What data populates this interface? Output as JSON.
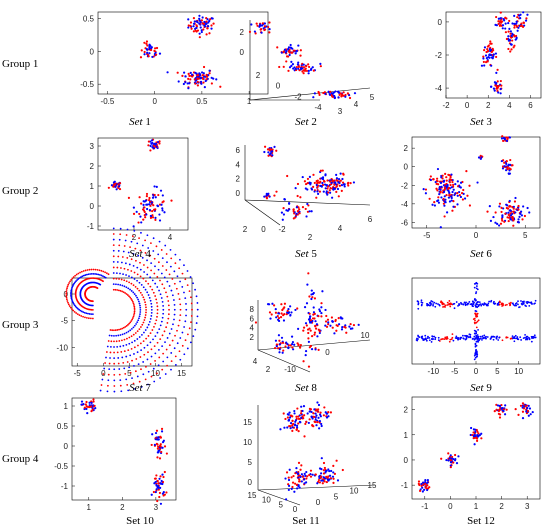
{
  "groups": [
    "Group 1",
    "Group 2",
    "Group 3",
    "Group 4"
  ],
  "colors": {
    "class_a": "#ff0000",
    "class_b": "#0000ff",
    "axis": "#000000"
  },
  "chart_data": [
    {
      "id": "set1",
      "type": "scatter",
      "caption_prefix": "Set",
      "caption_num": "1",
      "italic": true,
      "x_ticks": [
        "-0.5",
        "0",
        "0.5",
        "1"
      ],
      "y_ticks": [
        "0.5",
        "0",
        "-0.5"
      ],
      "xlim": [
        -0.6,
        1.2
      ],
      "ylim": [
        -0.65,
        0.6
      ],
      "clusters": [
        {
          "cx": 0.5,
          "cy": 0.4,
          "sx": 0.07,
          "sy": 0.07,
          "n": 70
        },
        {
          "cx": -0.05,
          "cy": 0.0,
          "sx": 0.05,
          "sy": 0.06,
          "n": 40
        },
        {
          "cx": 0.45,
          "cy": -0.4,
          "sx": 0.09,
          "sy": 0.07,
          "n": 90
        }
      ]
    },
    {
      "id": "set2",
      "type": "scatter3d",
      "caption_prefix": "Set",
      "caption_num": "2",
      "italic": true,
      "x_ticks": [
        "-4",
        "-2",
        "0",
        "2"
      ],
      "y_ticks": [
        "2",
        "0"
      ],
      "z_ticks": [
        "3",
        "4",
        "5"
      ]
    },
    {
      "id": "set3",
      "type": "scatter",
      "caption_prefix": "Set",
      "caption_num": "3",
      "italic": true,
      "x_ticks": [
        "-2",
        "0",
        "2",
        "4",
        "6"
      ],
      "y_ticks": [
        "0",
        "-2",
        "-4"
      ],
      "xlim": [
        -2,
        7
      ],
      "ylim": [
        -4.6,
        0.6
      ],
      "clusters": [
        {
          "cx": 3.2,
          "cy": -0.0,
          "sx": 0.25,
          "sy": 0.25,
          "n": 30
        },
        {
          "cx": 5.0,
          "cy": 0.0,
          "sx": 0.35,
          "sy": 0.25,
          "n": 35
        },
        {
          "cx": 4.2,
          "cy": -1.0,
          "sx": 0.3,
          "sy": 0.3,
          "n": 35
        },
        {
          "cx": 2.1,
          "cy": -2.0,
          "sx": 0.35,
          "sy": 0.35,
          "n": 50
        },
        {
          "cx": 2.9,
          "cy": -3.9,
          "sx": 0.3,
          "sy": 0.25,
          "n": 30
        }
      ]
    },
    {
      "id": "set4",
      "type": "scatter",
      "caption_prefix": "Set",
      "caption_num": "4",
      "italic": true,
      "x_ticks": [
        "2",
        "4"
      ],
      "y_ticks": [
        "3",
        "2",
        "1",
        "0",
        "-1"
      ],
      "xlim": [
        0,
        5
      ],
      "ylim": [
        -1.2,
        3.4
      ],
      "clusters": [
        {
          "cx": 3.1,
          "cy": 3.0,
          "sx": 0.2,
          "sy": 0.15,
          "n": 30
        },
        {
          "cx": 1.0,
          "cy": 1.0,
          "sx": 0.15,
          "sy": 0.1,
          "n": 25
        },
        {
          "cx": 3.0,
          "cy": 0.0,
          "sx": 0.45,
          "sy": 0.4,
          "n": 80
        }
      ]
    },
    {
      "id": "set5",
      "type": "scatter3d",
      "caption_prefix": "Set",
      "caption_num": "5",
      "italic": true,
      "x_ticks": [
        "6",
        "4",
        "2",
        "0"
      ],
      "y_ticks": [
        "2",
        "0",
        "-2"
      ],
      "z_ticks": [
        "2",
        "4",
        "6"
      ]
    },
    {
      "id": "set6",
      "type": "scatter",
      "caption_prefix": "Set",
      "caption_num": "6",
      "italic": true,
      "x_ticks": [
        "-5",
        "0",
        "5"
      ],
      "y_ticks": [
        "2",
        "0",
        "-2",
        "-4",
        "-6"
      ],
      "xlim": [
        -6.5,
        6.5
      ],
      "ylim": [
        -6.6,
        3.2
      ],
      "clusters": [
        {
          "cx": -3.0,
          "cy": -2.5,
          "sx": 1.0,
          "sy": 1.0,
          "n": 150
        },
        {
          "cx": 3.5,
          "cy": -5.0,
          "sx": 0.8,
          "sy": 0.7,
          "n": 90
        },
        {
          "cx": 3.0,
          "cy": 0.0,
          "sx": 0.3,
          "sy": 0.4,
          "n": 30
        },
        {
          "cx": 3.0,
          "cy": 3.0,
          "sx": 0.2,
          "sy": 0.15,
          "n": 15
        },
        {
          "cx": 0.5,
          "cy": 1.0,
          "sx": 0.1,
          "sy": 0.1,
          "n": 8
        }
      ]
    },
    {
      "id": "set7",
      "type": "scatter",
      "caption_prefix": "Set",
      "caption_num": "7",
      "italic": true,
      "x_ticks": [
        "-5",
        "0",
        "5",
        "10",
        "15"
      ],
      "y_ticks": [
        "0",
        "-5",
        "-10"
      ],
      "xlim": [
        -6,
        17
      ],
      "ylim": [
        -13.5,
        3
      ]
    },
    {
      "id": "set8",
      "type": "scatter3d",
      "caption_prefix": "Set",
      "caption_num": "8",
      "italic": true,
      "x_ticks": [
        "-10",
        "0",
        "10"
      ],
      "y_ticks": [
        "2",
        "4",
        "6",
        "8"
      ],
      "z_ticks": [
        "2",
        "4",
        "6",
        "8"
      ]
    },
    {
      "id": "set9",
      "type": "scatter",
      "caption_prefix": "Set",
      "caption_num": "9",
      "italic": true,
      "x_ticks": [
        "-10",
        "-5",
        "0",
        "5",
        "10"
      ],
      "y_ticks": [],
      "xlim": [
        -15,
        15
      ],
      "ylim": [
        -10,
        10
      ]
    },
    {
      "id": "set10",
      "type": "scatter",
      "caption_prefix": "Set",
      "caption_num": "10",
      "italic": false,
      "x_ticks": [
        "1",
        "2",
        "3"
      ],
      "y_ticks": [
        "1",
        "0.5",
        "0",
        "-0.5",
        "-1"
      ],
      "xlim": [
        0.5,
        3.6
      ],
      "ylim": [
        -1.35,
        1.2
      ],
      "clusters": [
        {
          "cx": 1.0,
          "cy": 1.0,
          "sx": 0.1,
          "sy": 0.08,
          "n": 35
        },
        {
          "cx": 3.1,
          "cy": 0.0,
          "sx": 0.1,
          "sy": 0.2,
          "n": 45
        },
        {
          "cx": 3.1,
          "cy": -1.0,
          "sx": 0.1,
          "sy": 0.17,
          "n": 45
        }
      ]
    },
    {
      "id": "set11",
      "type": "scatter3d",
      "caption_prefix": "Set",
      "caption_num": "11",
      "italic": false,
      "x_ticks": [
        "15",
        "10",
        "5",
        "0"
      ],
      "y_ticks": [
        "0",
        "5",
        "10",
        "15"
      ],
      "z_ticks": [
        "0",
        "5",
        "10",
        "15"
      ]
    },
    {
      "id": "set12",
      "type": "scatter",
      "caption_prefix": "Set",
      "caption_num": "12",
      "italic": false,
      "x_ticks": [
        "-1",
        "0",
        "1",
        "2",
        "3"
      ],
      "y_ticks": [
        "2",
        "1",
        "0",
        "-1"
      ],
      "xlim": [
        -1.5,
        3.5
      ],
      "ylim": [
        -1.55,
        2.5
      ],
      "clusters": [
        {
          "cx": -1.0,
          "cy": -1.0,
          "sx": 0.12,
          "sy": 0.12,
          "n": 30
        },
        {
          "cx": 0.0,
          "cy": 0.0,
          "sx": 0.12,
          "sy": 0.12,
          "n": 30
        },
        {
          "cx": 1.0,
          "cy": 1.0,
          "sx": 0.12,
          "sy": 0.12,
          "n": 30
        },
        {
          "cx": 2.0,
          "cy": 2.0,
          "sx": 0.12,
          "sy": 0.12,
          "n": 30
        },
        {
          "cx": 3.0,
          "cy": 2.0,
          "sx": 0.12,
          "sy": 0.12,
          "n": 30
        }
      ]
    }
  ]
}
